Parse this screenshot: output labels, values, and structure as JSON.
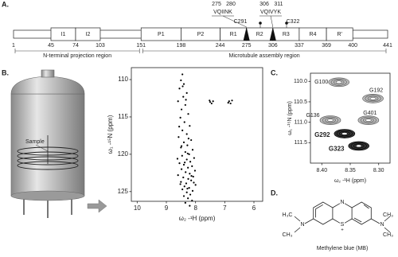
{
  "panel_a": {
    "letter": "A.",
    "motifs": [
      {
        "start": 275,
        "end": 280,
        "sequence": "VQIINK"
      },
      {
        "start": 306,
        "end": 311,
        "sequence": "VQIVYK"
      }
    ],
    "cysteines": [
      "C291",
      "C322"
    ],
    "residues": [
      1,
      45,
      74,
      103,
      151,
      198,
      244,
      275,
      306,
      337,
      369,
      400,
      441
    ],
    "domains": [
      {
        "label": "I1",
        "from": 45,
        "to": 74
      },
      {
        "label": "I2",
        "from": 74,
        "to": 103
      },
      {
        "label": "P1",
        "from": 151,
        "to": 198
      },
      {
        "label": "P2",
        "from": 198,
        "to": 244
      },
      {
        "label": "R1",
        "from": 244,
        "to": 275
      },
      {
        "label": "R2",
        "from": 275,
        "to": 306
      },
      {
        "label": "R3",
        "from": 306,
        "to": 337
      },
      {
        "label": "R4",
        "from": 337,
        "to": 369
      },
      {
        "label": "R'",
        "from": 369,
        "to": 400
      }
    ],
    "regions": [
      {
        "label": "N-terminal projection region",
        "from": 1,
        "to": 151
      },
      {
        "label": "Microtubule assembly region",
        "from": 151,
        "to": 441
      }
    ]
  },
  "panel_b": {
    "letter": "B.",
    "sample_label": "Sample",
    "chart": {
      "type": "scatter",
      "color": "#000000",
      "x": [
        8.45,
        8.5,
        8.4,
        8.55,
        8.3,
        8.42,
        8.6,
        8.35,
        8.48,
        8.25,
        8.52,
        8.38,
        8.2,
        8.45,
        8.3,
        8.58,
        8.15,
        8.4,
        8.28,
        8.5,
        8.1,
        8.35,
        8.22,
        8.46,
        8.05,
        8.3,
        8.18,
        8.55,
        8.4,
        8.12,
        8.26,
        8.48,
        8.02,
        8.34,
        8.2,
        8.6,
        8.08,
        8.42,
        8.25,
        8.15,
        8.5,
        8.32,
        8.0,
        8.38,
        8.22,
        8.45,
        8.1,
        8.3,
        8.18,
        8.4,
        8.26,
        8.12,
        8.35,
        8.2,
        8.44,
        8.33,
        8.56,
        8.27,
        8.37,
        8.14,
        8.52,
        8.28,
        8.06,
        8.48,
        8.24,
        8.62,
        7.5,
        7.45,
        7.52,
        6.85,
        6.8,
        6.88,
        7.4,
        6.75
      ],
      "y": [
        109.3,
        110.1,
        110.6,
        111.2,
        111.8,
        112.3,
        112.9,
        113.4,
        114.0,
        114.6,
        115.1,
        115.7,
        116.2,
        116.8,
        117.3,
        117.7,
        118.1,
        118.4,
        118.8,
        119.1,
        119.4,
        119.7,
        120.0,
        120.2,
        120.5,
        120.7,
        121.0,
        121.2,
        121.4,
        121.6,
        121.8,
        122.0,
        122.2,
        122.4,
        122.6,
        122.8,
        123.0,
        123.1,
        123.3,
        123.5,
        123.7,
        123.9,
        124.1,
        124.3,
        124.5,
        124.7,
        124.9,
        125.1,
        125.4,
        125.6,
        125.9,
        126.2,
        126.5,
        126.9,
        110.9,
        112.7,
        116.3,
        119.9,
        121.1,
        122.9,
        124.0,
        124.6,
        123.8,
        118.9,
        117.9,
        120.6,
        113.0,
        113.2,
        112.8,
        112.9,
        113.2,
        113.1,
        112.9,
        112.8
      ],
      "xlim": [
        10.2,
        5.7
      ],
      "ylim": [
        108.4,
        126.3
      ],
      "xticks": [
        10,
        9,
        8,
        7,
        6
      ],
      "yticks": [
        110,
        115,
        120,
        125
      ],
      "xlabel": "ω₂ -¹H (ppm)",
      "ylabel": "ω₁ -¹⁵N (ppm)"
    }
  },
  "panel_c": {
    "letter": "C.",
    "chart": {
      "type": "contour",
      "xlim": [
        8.42,
        8.28
      ],
      "ylim": [
        109.8,
        112.0
      ],
      "xticks": [
        {
          "value": 8.4,
          "label": "8.40"
        },
        {
          "value": 8.35,
          "label": "8.35"
        },
        {
          "value": 8.3,
          "label": "8.30"
        }
      ],
      "yticks": [
        {
          "value": 110,
          "label": "110.0"
        },
        {
          "value": 110.5,
          "label": "110.5"
        },
        {
          "value": 111,
          "label": "111.0"
        },
        {
          "value": 111.5,
          "label": "111.5"
        }
      ],
      "xlabel": "ω₂ -¹H (ppm)",
      "ylabel": "ω₁ -¹⁵N (ppm)",
      "peaks": [
        {
          "label": "G100",
          "x": 8.37,
          "y": 110.02,
          "emphasis": false
        },
        {
          "label": "G192",
          "x": 8.31,
          "y": 110.42,
          "emphasis": false
        },
        {
          "label": "G136",
          "x": 8.385,
          "y": 110.95,
          "emphasis": false
        },
        {
          "label": "G401",
          "x": 8.318,
          "y": 110.95,
          "emphasis": false
        },
        {
          "label": "G292",
          "x": 8.36,
          "y": 111.28,
          "emphasis": true
        },
        {
          "label": "G323",
          "x": 8.335,
          "y": 111.58,
          "emphasis": true
        }
      ]
    }
  },
  "panel_d": {
    "letter": "D.",
    "atoms": {
      "methyl_left_top": "H₃C",
      "n_left": "N",
      "methyl_left_bottom": "CH₃",
      "n_ring": "N",
      "s_ring": "S",
      "charge": "+",
      "methyl_right_top": "CH₃",
      "n_right": "N",
      "methyl_right_bottom": "CH₃"
    },
    "caption": "Methylene blue (MB)"
  }
}
